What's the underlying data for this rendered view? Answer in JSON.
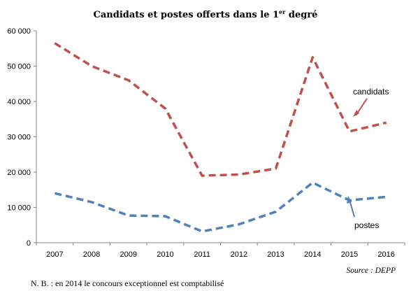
{
  "chart_data": {
    "type": "line",
    "title": "Candidats et postes offerts dans le 1",
    "title_sup": "er",
    "title_end": " degré",
    "categories": [
      "2007",
      "2008",
      "2009",
      "2010",
      "2011",
      "2012",
      "2013",
      "2014",
      "2015",
      "2016"
    ],
    "ylim": [
      0,
      60000
    ],
    "yticks": [
      0,
      10000,
      20000,
      30000,
      40000,
      50000,
      60000
    ],
    "ytick_labels": [
      "0",
      "10 000",
      "20 000",
      "30 000",
      "40 000",
      "50 000",
      "60 000"
    ],
    "grid": false,
    "legend": "none",
    "series": [
      {
        "name": "candidats",
        "color": "#c0504d",
        "values": [
          56500,
          50000,
          46000,
          38000,
          19000,
          19300,
          21000,
          52500,
          31500,
          34000
        ]
      },
      {
        "name": "postes",
        "color": "#4f81bd",
        "values": [
          14000,
          11500,
          7700,
          7500,
          3200,
          5200,
          8800,
          17000,
          12000,
          13000
        ]
      }
    ],
    "source": "Source : DEPP",
    "note": "N. B. : en 2014 le concours exceptionnel est comptabilisé"
  }
}
